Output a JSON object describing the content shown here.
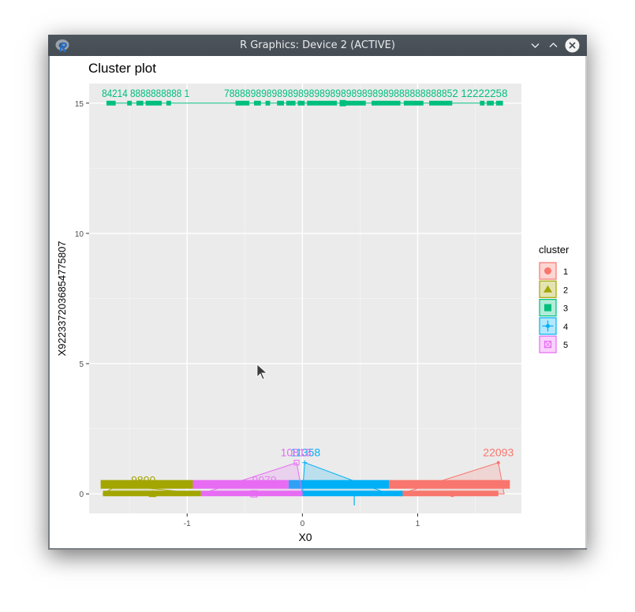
{
  "window": {
    "title": "R Graphics: Device 2 (ACTIVE)",
    "app_icon": "r-logo-icon",
    "controls": [
      "minimize",
      "maximize",
      "close"
    ]
  },
  "chart_data": {
    "type": "scatter",
    "title": "Cluster plot",
    "xlabel": "X0",
    "ylabel": "X9223372036854775807",
    "xlim": [
      -1.85,
      1.9
    ],
    "ylim": [
      -0.75,
      15.75
    ],
    "x_ticks": [
      -1,
      0,
      1
    ],
    "x_tick_labels": [
      "-1",
      "0",
      "1"
    ],
    "y_ticks": [
      0,
      5,
      10,
      15
    ],
    "y_tick_labels": [
      "0",
      "5",
      "10",
      "15"
    ],
    "grid": true,
    "legend": {
      "title": "cluster",
      "position": "right",
      "entries": [
        {
          "label": "1",
          "color": "#F8766D",
          "shape": "circle"
        },
        {
          "label": "2",
          "color": "#A3A500",
          "shape": "triangle"
        },
        {
          "label": "3",
          "color": "#00BF7D",
          "shape": "square"
        },
        {
          "label": "4",
          "color": "#00B0F6",
          "shape": "cross"
        },
        {
          "label": "5",
          "color": "#E76BF3",
          "shape": "square-cross"
        }
      ]
    },
    "series": [
      {
        "name": "1",
        "color": "#F8766D",
        "x_range_row_upper": [
          0.75,
          1.8
        ],
        "y_upper": 0.35,
        "x_range_row_lower": [
          0.85,
          1.7
        ],
        "y_lower": 0.0,
        "hull": [
          [
            0.85,
            0.0
          ],
          [
            1.7,
            1.2
          ],
          [
            1.75,
            0.0
          ]
        ],
        "center": [
          1.3,
          0.0
        ],
        "visible_labels": [
          "22093"
        ]
      },
      {
        "name": "2",
        "color": "#A3A500",
        "x_range_row_upper": [
          -1.75,
          -0.95
        ],
        "y_upper": 0.35,
        "x_range_row_lower": [
          -1.73,
          -0.88
        ],
        "y_lower": 0.0,
        "hull": [
          [
            -1.73,
            0.0
          ],
          [
            -1.6,
            0.35
          ],
          [
            -0.88,
            0.0
          ]
        ],
        "center": [
          -1.3,
          0.0
        ],
        "visible_labels": [
          "9800"
        ]
      },
      {
        "name": "3",
        "color": "#00BF7D",
        "x_range": [
          -1.7,
          1.72
        ],
        "y": 15.0,
        "center": [
          0.35,
          15.0
        ],
        "label_row_y": 15.35,
        "visible_labels": [
          "8",
          "1",
          "4",
          "1",
          "7",
          "9",
          "8",
          "9",
          "2",
          "1",
          "2"
        ]
      },
      {
        "name": "4",
        "color": "#00B0F6",
        "x_range_row_upper": [
          -0.12,
          0.75
        ],
        "y_upper": 0.35,
        "x_range_row_lower": [
          0.0,
          0.87
        ],
        "y_lower": 0.0,
        "hull": [
          [
            0.0,
            0.0
          ],
          [
            0.02,
            1.2
          ],
          [
            0.75,
            0.0
          ]
        ],
        "center": [
          0.45,
          -0.2
        ],
        "visible_labels": [
          "11358"
        ]
      },
      {
        "name": "5",
        "color": "#E76BF3",
        "x_range_row_upper": [
          -0.95,
          -0.12
        ],
        "y_upper": 0.35,
        "x_range_row_lower": [
          -0.88,
          0.0
        ],
        "y_lower": 0.0,
        "hull": [
          [
            -0.88,
            0.0
          ],
          [
            -0.05,
            1.2
          ],
          [
            0.0,
            0.0
          ]
        ],
        "center": [
          -0.42,
          0.0
        ],
        "visible_labels": [
          "10813",
          "9079"
        ]
      }
    ]
  }
}
